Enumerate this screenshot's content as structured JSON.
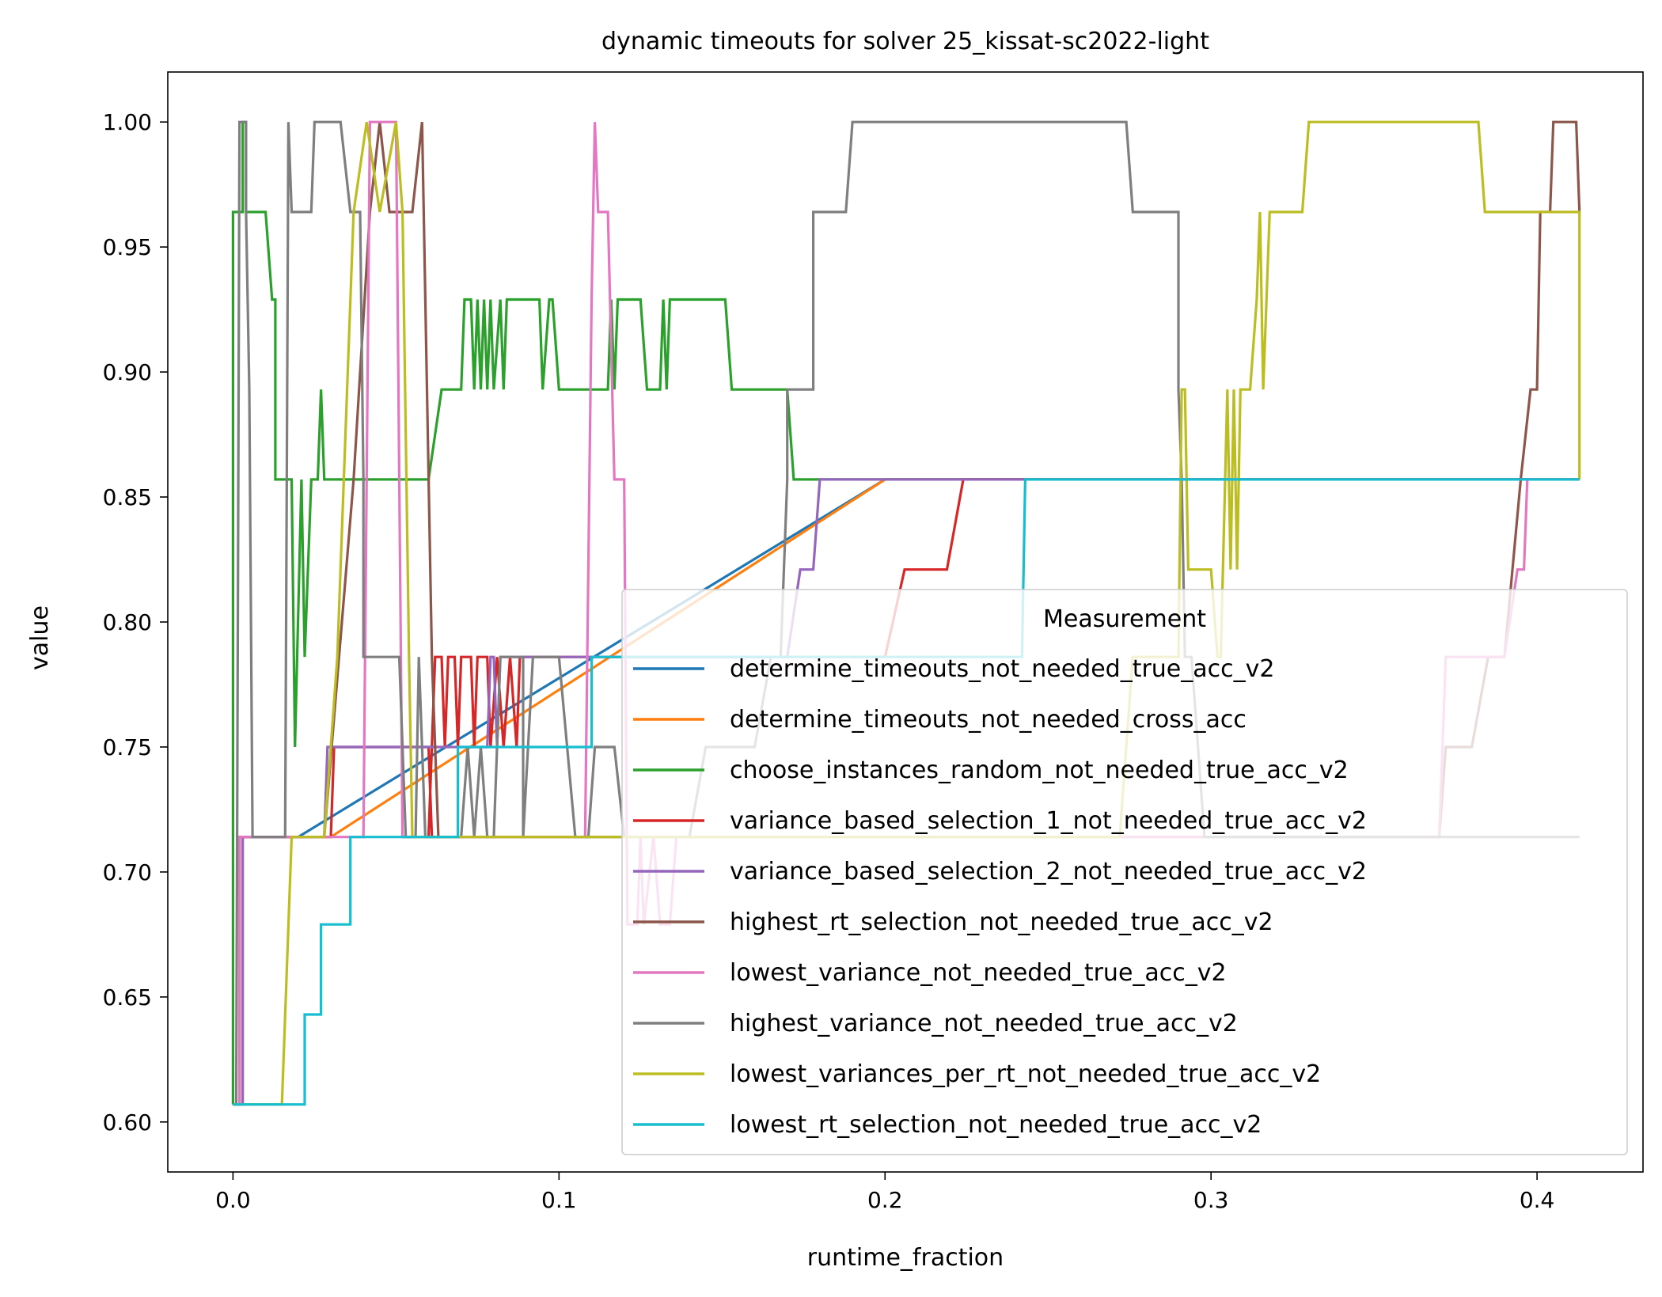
{
  "chart_data": {
    "type": "line",
    "title": "dynamic timeouts for solver 25_kissat-sc2022-light",
    "xlabel": "runtime_fraction",
    "ylabel": "value",
    "xlim": [
      -0.02,
      0.4325
    ],
    "ylim": [
      0.58,
      1.02
    ],
    "xticks": [
      0.0,
      0.1,
      0.2,
      0.3,
      0.4
    ],
    "xtick_labels": [
      "0.0",
      "0.1",
      "0.2",
      "0.3",
      "0.4"
    ],
    "yticks": [
      0.6,
      0.65,
      0.7,
      0.75,
      0.8,
      0.85,
      0.9,
      0.95,
      1.0
    ],
    "ytick_labels": [
      "0.60",
      "0.65",
      "0.70",
      "0.75",
      "0.80",
      "0.85",
      "0.90",
      "0.95",
      "1.00"
    ],
    "grid": false,
    "legend": {
      "title": "Measurement",
      "placement": "lower-right"
    },
    "series": [
      {
        "name": "determine_timeouts_not_needed_true_acc_v2",
        "color": "#1f77b4",
        "points": [
          [
            0.0,
            0.607
          ],
          [
            0.002,
            0.607
          ],
          [
            0.002,
            0.714
          ],
          [
            0.02,
            0.714
          ],
          [
            0.2,
            0.857
          ],
          [
            0.413,
            0.857
          ]
        ]
      },
      {
        "name": "determine_timeouts_not_needed_cross_acc",
        "color": "#ff7f0e",
        "points": [
          [
            0.0,
            0.607
          ],
          [
            0.002,
            0.607
          ],
          [
            0.002,
            0.714
          ],
          [
            0.03,
            0.714
          ],
          [
            0.2,
            0.857
          ],
          [
            0.413,
            0.857
          ]
        ]
      },
      {
        "name": "choose_instances_random_not_needed_true_acc_v2",
        "color": "#2ca02c",
        "points": [
          [
            0.0,
            0.607
          ],
          [
            0.0,
            0.964
          ],
          [
            0.003,
            0.964
          ],
          [
            0.003,
            1.0
          ],
          [
            0.004,
            1.0
          ],
          [
            0.004,
            0.964
          ],
          [
            0.01,
            0.964
          ],
          [
            0.012,
            0.929
          ],
          [
            0.013,
            0.929
          ],
          [
            0.013,
            0.857
          ],
          [
            0.018,
            0.857
          ],
          [
            0.019,
            0.75
          ],
          [
            0.021,
            0.857
          ],
          [
            0.022,
            0.786
          ],
          [
            0.024,
            0.857
          ],
          [
            0.026,
            0.857
          ],
          [
            0.027,
            0.893
          ],
          [
            0.028,
            0.857
          ],
          [
            0.06,
            0.857
          ],
          [
            0.064,
            0.893
          ],
          [
            0.07,
            0.893
          ],
          [
            0.071,
            0.929
          ],
          [
            0.073,
            0.929
          ],
          [
            0.074,
            0.893
          ],
          [
            0.075,
            0.929
          ],
          [
            0.076,
            0.893
          ],
          [
            0.077,
            0.929
          ],
          [
            0.078,
            0.893
          ],
          [
            0.079,
            0.929
          ],
          [
            0.08,
            0.893
          ],
          [
            0.082,
            0.929
          ],
          [
            0.083,
            0.893
          ],
          [
            0.084,
            0.929
          ],
          [
            0.094,
            0.929
          ],
          [
            0.095,
            0.893
          ],
          [
            0.097,
            0.929
          ],
          [
            0.098,
            0.929
          ],
          [
            0.1,
            0.893
          ],
          [
            0.115,
            0.893
          ],
          [
            0.116,
            0.929
          ],
          [
            0.117,
            0.893
          ],
          [
            0.118,
            0.929
          ],
          [
            0.125,
            0.929
          ],
          [
            0.127,
            0.893
          ],
          [
            0.131,
            0.893
          ],
          [
            0.132,
            0.929
          ],
          [
            0.133,
            0.893
          ],
          [
            0.134,
            0.929
          ],
          [
            0.151,
            0.929
          ],
          [
            0.153,
            0.893
          ],
          [
            0.17,
            0.893
          ],
          [
            0.172,
            0.857
          ],
          [
            0.413,
            0.857
          ]
        ]
      },
      {
        "name": "variance_based_selection_1_not_needed_true_acc_v2",
        "color": "#d62728",
        "points": [
          [
            0.0,
            0.607
          ],
          [
            0.002,
            0.607
          ],
          [
            0.002,
            0.714
          ],
          [
            0.03,
            0.714
          ],
          [
            0.031,
            0.75
          ],
          [
            0.06,
            0.75
          ],
          [
            0.061,
            0.714
          ],
          [
            0.06,
            0.714
          ],
          [
            0.062,
            0.786
          ],
          [
            0.064,
            0.786
          ],
          [
            0.065,
            0.75
          ],
          [
            0.066,
            0.786
          ],
          [
            0.068,
            0.786
          ],
          [
            0.069,
            0.75
          ],
          [
            0.07,
            0.786
          ],
          [
            0.073,
            0.786
          ],
          [
            0.074,
            0.75
          ],
          [
            0.075,
            0.786
          ],
          [
            0.078,
            0.786
          ],
          [
            0.079,
            0.75
          ],
          [
            0.081,
            0.786
          ],
          [
            0.083,
            0.75
          ],
          [
            0.085,
            0.786
          ],
          [
            0.087,
            0.75
          ],
          [
            0.088,
            0.786
          ],
          [
            0.2,
            0.786
          ],
          [
            0.206,
            0.821
          ],
          [
            0.219,
            0.821
          ],
          [
            0.224,
            0.857
          ],
          [
            0.413,
            0.857
          ]
        ]
      },
      {
        "name": "variance_based_selection_2_not_needed_true_acc_v2",
        "color": "#9467bd",
        "points": [
          [
            0.0,
            0.607
          ],
          [
            0.003,
            0.607
          ],
          [
            0.003,
            0.714
          ],
          [
            0.028,
            0.714
          ],
          [
            0.029,
            0.75
          ],
          [
            0.078,
            0.75
          ],
          [
            0.079,
            0.786
          ],
          [
            0.08,
            0.786
          ],
          [
            0.081,
            0.75
          ],
          [
            0.082,
            0.786
          ],
          [
            0.17,
            0.786
          ],
          [
            0.174,
            0.821
          ],
          [
            0.178,
            0.821
          ],
          [
            0.18,
            0.857
          ],
          [
            0.413,
            0.857
          ]
        ]
      },
      {
        "name": "highest_rt_selection_not_needed_true_acc_v2",
        "color": "#8c564b",
        "points": [
          [
            0.0,
            0.607
          ],
          [
            0.002,
            0.607
          ],
          [
            0.002,
            0.714
          ],
          [
            0.028,
            0.714
          ],
          [
            0.037,
            0.857
          ],
          [
            0.042,
            0.964
          ],
          [
            0.045,
            1.0
          ],
          [
            0.048,
            0.964
          ],
          [
            0.05,
            0.964
          ],
          [
            0.052,
            0.964
          ],
          [
            0.055,
            0.964
          ],
          [
            0.058,
            1.0
          ],
          [
            0.061,
            0.786
          ],
          [
            0.063,
            0.714
          ],
          [
            0.37,
            0.714
          ],
          [
            0.372,
            0.75
          ],
          [
            0.38,
            0.75
          ],
          [
            0.385,
            0.786
          ],
          [
            0.39,
            0.786
          ],
          [
            0.395,
            0.857
          ],
          [
            0.398,
            0.893
          ],
          [
            0.4,
            0.893
          ],
          [
            0.401,
            0.964
          ],
          [
            0.404,
            0.964
          ],
          [
            0.405,
            1.0
          ],
          [
            0.412,
            1.0
          ],
          [
            0.413,
            0.964
          ]
        ]
      },
      {
        "name": "lowest_variance_not_needed_true_acc_v2",
        "color": "#e377c2",
        "points": [
          [
            0.0,
            0.607
          ],
          [
            0.002,
            0.607
          ],
          [
            0.002,
            0.714
          ],
          [
            0.04,
            0.714
          ],
          [
            0.042,
            1.0
          ],
          [
            0.05,
            1.0
          ],
          [
            0.052,
            0.714
          ],
          [
            0.108,
            0.714
          ],
          [
            0.11,
            0.929
          ],
          [
            0.111,
            1.0
          ],
          [
            0.112,
            0.964
          ],
          [
            0.115,
            0.964
          ],
          [
            0.117,
            0.857
          ],
          [
            0.12,
            0.857
          ],
          [
            0.121,
            0.679
          ],
          [
            0.124,
            0.679
          ],
          [
            0.125,
            0.714
          ],
          [
            0.126,
            0.679
          ],
          [
            0.129,
            0.714
          ],
          [
            0.131,
            0.679
          ],
          [
            0.134,
            0.679
          ],
          [
            0.136,
            0.714
          ],
          [
            0.37,
            0.714
          ],
          [
            0.372,
            0.786
          ],
          [
            0.39,
            0.786
          ],
          [
            0.394,
            0.821
          ],
          [
            0.396,
            0.821
          ],
          [
            0.397,
            0.857
          ],
          [
            0.413,
            0.857
          ]
        ]
      },
      {
        "name": "highest_variance_not_needed_true_acc_v2",
        "color": "#7f7f7f",
        "points": [
          [
            0.0,
            0.607
          ],
          [
            0.001,
            0.607
          ],
          [
            0.002,
            1.0
          ],
          [
            0.004,
            1.0
          ],
          [
            0.004,
            0.964
          ],
          [
            0.005,
            0.893
          ],
          [
            0.006,
            0.714
          ],
          [
            0.016,
            0.714
          ],
          [
            0.017,
            1.0
          ],
          [
            0.018,
            0.964
          ],
          [
            0.024,
            0.964
          ],
          [
            0.025,
            1.0
          ],
          [
            0.033,
            1.0
          ],
          [
            0.036,
            0.964
          ],
          [
            0.039,
            0.964
          ],
          [
            0.04,
            0.857
          ],
          [
            0.04,
            0.786
          ],
          [
            0.051,
            0.786
          ],
          [
            0.053,
            0.714
          ],
          [
            0.056,
            0.714
          ],
          [
            0.057,
            0.786
          ],
          [
            0.059,
            0.714
          ],
          [
            0.07,
            0.714
          ],
          [
            0.072,
            0.75
          ],
          [
            0.074,
            0.714
          ],
          [
            0.076,
            0.75
          ],
          [
            0.078,
            0.714
          ],
          [
            0.08,
            0.714
          ],
          [
            0.082,
            0.786
          ],
          [
            0.089,
            0.786
          ],
          [
            0.089,
            0.714
          ],
          [
            0.092,
            0.786
          ],
          [
            0.1,
            0.786
          ],
          [
            0.105,
            0.714
          ],
          [
            0.109,
            0.714
          ],
          [
            0.111,
            0.75
          ],
          [
            0.117,
            0.75
          ],
          [
            0.12,
            0.714
          ],
          [
            0.14,
            0.714
          ],
          [
            0.145,
            0.75
          ],
          [
            0.16,
            0.75
          ],
          [
            0.165,
            0.786
          ],
          [
            0.168,
            0.786
          ],
          [
            0.17,
            0.857
          ],
          [
            0.17,
            0.893
          ],
          [
            0.178,
            0.893
          ],
          [
            0.178,
            0.964
          ],
          [
            0.188,
            0.964
          ],
          [
            0.19,
            1.0
          ],
          [
            0.274,
            1.0
          ],
          [
            0.276,
            0.964
          ],
          [
            0.29,
            0.964
          ],
          [
            0.29,
            0.893
          ],
          [
            0.291,
            0.857
          ],
          [
            0.292,
            0.786
          ],
          [
            0.294,
            0.786
          ],
          [
            0.298,
            0.714
          ],
          [
            0.413,
            0.714
          ]
        ]
      },
      {
        "name": "lowest_variances_per_rt_not_needed_true_acc_v2",
        "color": "#bcbd22",
        "points": [
          [
            0.0,
            0.607
          ],
          [
            0.015,
            0.607
          ],
          [
            0.018,
            0.714
          ],
          [
            0.025,
            0.714
          ],
          [
            0.028,
            0.714
          ],
          [
            0.032,
            0.786
          ],
          [
            0.037,
            0.964
          ],
          [
            0.041,
            1.0
          ],
          [
            0.045,
            0.964
          ],
          [
            0.05,
            1.0
          ],
          [
            0.052,
            0.964
          ],
          [
            0.054,
            0.786
          ],
          [
            0.055,
            0.714
          ],
          [
            0.272,
            0.714
          ],
          [
            0.276,
            0.786
          ],
          [
            0.288,
            0.786
          ],
          [
            0.29,
            0.786
          ],
          [
            0.291,
            0.893
          ],
          [
            0.292,
            0.893
          ],
          [
            0.293,
            0.821
          ],
          [
            0.3,
            0.821
          ],
          [
            0.302,
            0.786
          ],
          [
            0.303,
            0.786
          ],
          [
            0.305,
            0.893
          ],
          [
            0.306,
            0.821
          ],
          [
            0.307,
            0.893
          ],
          [
            0.308,
            0.821
          ],
          [
            0.309,
            0.893
          ],
          [
            0.312,
            0.893
          ],
          [
            0.314,
            0.929
          ],
          [
            0.315,
            0.964
          ],
          [
            0.316,
            0.893
          ],
          [
            0.318,
            0.964
          ],
          [
            0.328,
            0.964
          ],
          [
            0.33,
            1.0
          ],
          [
            0.382,
            1.0
          ],
          [
            0.384,
            0.964
          ],
          [
            0.413,
            0.964
          ],
          [
            0.413,
            0.857
          ]
        ]
      },
      {
        "name": "lowest_rt_selection_not_needed_true_acc_v2",
        "color": "#17becf",
        "points": [
          [
            0.0,
            0.607
          ],
          [
            0.022,
            0.607
          ],
          [
            0.022,
            0.643
          ],
          [
            0.027,
            0.643
          ],
          [
            0.027,
            0.679
          ],
          [
            0.036,
            0.679
          ],
          [
            0.036,
            0.714
          ],
          [
            0.069,
            0.714
          ],
          [
            0.069,
            0.75
          ],
          [
            0.11,
            0.75
          ],
          [
            0.11,
            0.786
          ],
          [
            0.242,
            0.786
          ],
          [
            0.243,
            0.857
          ],
          [
            0.413,
            0.857
          ]
        ]
      }
    ]
  }
}
